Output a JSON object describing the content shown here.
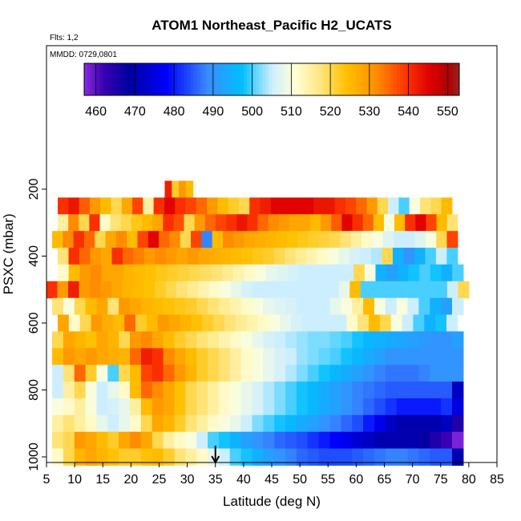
{
  "chart_data": {
    "type": "heatmap",
    "title": "ATOM1 Northeast_Pacific H2_UCATS",
    "subtitle_flights": "Flts: 1,2",
    "subtitle_dates": "MMDD: 0729,0801",
    "xlabel": "Latitude (deg N)",
    "ylabel": "PSXC (mbar)",
    "xlim": [
      5,
      85
    ],
    "ylim": [
      1000,
      0
    ],
    "x_ticks": [
      "5",
      "10",
      "15",
      "20",
      "25",
      "30",
      "35",
      "40",
      "45",
      "50",
      "55",
      "60",
      "65",
      "70",
      "75",
      "80",
      "85"
    ],
    "y_ticks": [
      "200",
      "400",
      "600",
      "800",
      "1000"
    ],
    "colorbar": {
      "min": 457,
      "max": 553,
      "ticks": [
        "460",
        "470",
        "480",
        "490",
        "500",
        "510",
        "520",
        "530",
        "540",
        "550"
      ]
    },
    "marker": {
      "x": 35,
      "y": 1000
    },
    "rows": [
      {
        "p": 200,
        "lat_start": 26,
        "lat_end": 31,
        "values": [
          542,
          522,
          530,
          525
        ]
      },
      {
        "p": 250,
        "lat_start": 7,
        "lat_end": 77,
        "values": [
          540,
          543,
          536,
          530,
          525,
          520,
          528,
          538,
          515,
          540,
          545,
          540,
          538,
          535,
          530,
          525,
          522,
          520,
          540,
          542,
          545,
          545,
          545,
          545,
          543,
          543,
          540,
          538,
          535,
          530,
          520,
          505,
          500,
          510,
          518,
          520,
          525
        ]
      },
      {
        "p": 300,
        "lat_start": 7,
        "lat_end": 78,
        "values": [
          515,
          532,
          520,
          540,
          512,
          518,
          520,
          523,
          525,
          528,
          540,
          537,
          520,
          530,
          535,
          538,
          540,
          543,
          540,
          535,
          532,
          530,
          528,
          528,
          525,
          530,
          536,
          545,
          540,
          535,
          525,
          510,
          525,
          540,
          545,
          538,
          525,
          518
        ]
      },
      {
        "p": 350,
        "lat_start": 6,
        "lat_end": 78,
        "values": [
          525,
          532,
          540,
          535,
          520,
          528,
          532,
          525,
          538,
          545,
          535,
          532,
          520,
          538,
          488,
          525,
          532,
          530,
          528,
          527,
          526,
          525,
          524,
          523,
          522,
          521,
          520,
          518,
          515,
          512,
          510,
          507,
          505,
          505,
          507,
          510,
          520,
          538
        ]
      },
      {
        "p": 400,
        "lat_start": 7,
        "lat_end": 78,
        "values": [
          518,
          540,
          535,
          530,
          528,
          540,
          535,
          533,
          530,
          532,
          530,
          528,
          530,
          528,
          527,
          526,
          525,
          524,
          523,
          522,
          520,
          518,
          516,
          514,
          512,
          510,
          508,
          506,
          505,
          504,
          520,
          495,
          490,
          495,
          500,
          505,
          500
        ]
      },
      {
        "p": 450,
        "lat_start": 7,
        "lat_end": 79,
        "values": [
          512,
          525,
          530,
          532,
          528,
          528,
          526,
          525,
          524,
          523,
          522,
          521,
          520,
          519,
          518,
          516,
          514,
          512,
          510,
          508,
          507,
          506,
          505,
          505,
          505,
          505,
          505,
          520,
          510,
          495,
          492,
          495,
          498,
          500,
          498,
          495,
          500
        ]
      },
      {
        "p": 500,
        "lat_start": 5,
        "lat_end": 80,
        "values": [
          540,
          530,
          542,
          530,
          532,
          530,
          528,
          526,
          525,
          524,
          522,
          520,
          518,
          516,
          514,
          512,
          510,
          508,
          506,
          505,
          505,
          505,
          505,
          505,
          505,
          505,
          505,
          508,
          525,
          500,
          500,
          500,
          500,
          500,
          500,
          500,
          500,
          505,
          520
        ]
      },
      {
        "p": 550,
        "lat_start": 6,
        "lat_end": 79,
        "values": [
          518,
          510,
          520,
          525,
          528,
          518,
          530,
          528,
          526,
          525,
          524,
          523,
          522,
          520,
          518,
          516,
          514,
          512,
          510,
          508,
          507,
          506,
          505,
          505,
          505,
          508,
          510,
          515,
          525,
          510,
          505,
          510,
          505,
          500,
          495,
          492,
          505
        ]
      },
      {
        "p": 600,
        "lat_start": 7,
        "lat_end": 78,
        "values": [
          528,
          512,
          520,
          530,
          527,
          525,
          535,
          522,
          525,
          530,
          528,
          526,
          524,
          522,
          520,
          518,
          516,
          514,
          512,
          510,
          508,
          506,
          505,
          505,
          505,
          505,
          512,
          518,
          525,
          520,
          510,
          505,
          500,
          495,
          498,
          505
        ]
      },
      {
        "p": 650,
        "lat_start": 6,
        "lat_end": 79,
        "values": [
          520,
          528,
          526,
          524,
          528,
          526,
          520,
          530,
          532,
          528,
          525,
          522,
          520,
          518,
          516,
          514,
          512,
          510,
          508,
          506,
          505,
          504,
          503,
          502,
          502,
          501,
          500,
          498,
          496,
          495,
          494,
          493,
          492,
          491,
          490,
          490,
          492
        ]
      },
      {
        "p": 700,
        "lat_start": 6,
        "lat_end": 79,
        "values": [
          525,
          530,
          528,
          530,
          528,
          527,
          526,
          535,
          542,
          540,
          532,
          528,
          525,
          522,
          520,
          518,
          515,
          512,
          510,
          508,
          506,
          505,
          503,
          502,
          501,
          500,
          498,
          496,
          494,
          492,
          490,
          490,
          490,
          490,
          490,
          490,
          490
        ]
      },
      {
        "p": 750,
        "lat_start": 6,
        "lat_end": 79,
        "values": [
          505,
          518,
          535,
          522,
          510,
          500,
          520,
          525,
          538,
          540,
          535,
          530,
          526,
          522,
          520,
          518,
          515,
          512,
          510,
          508,
          506,
          504,
          502,
          500,
          498,
          496,
          494,
          492,
          490,
          488,
          487,
          487,
          487,
          488,
          490,
          490,
          490
        ]
      },
      {
        "p": 800,
        "lat_start": 6,
        "lat_end": 79,
        "values": [
          505,
          515,
          520,
          510,
          505,
          508,
          512,
          525,
          535,
          532,
          528,
          524,
          520,
          518,
          515,
          512,
          510,
          508,
          506,
          504,
          502,
          500,
          498,
          496,
          494,
          492,
          490,
          488,
          487,
          486,
          485,
          485,
          485,
          485,
          485,
          485,
          472
        ]
      },
      {
        "p": 850,
        "lat_start": 6,
        "lat_end": 79,
        "values": [
          510,
          512,
          515,
          510,
          505,
          506,
          508,
          515,
          525,
          530,
          528,
          524,
          520,
          518,
          515,
          512,
          510,
          508,
          506,
          504,
          502,
          500,
          498,
          496,
          494,
          492,
          490,
          488,
          486,
          484,
          482,
          480,
          480,
          480,
          480,
          482,
          475
        ]
      },
      {
        "p": 900,
        "lat_start": 6,
        "lat_end": 79,
        "values": [
          515,
          518,
          515,
          512,
          508,
          505,
          508,
          512,
          520,
          528,
          526,
          522,
          518,
          515,
          512,
          510,
          508,
          505,
          502,
          500,
          498,
          496,
          494,
          492,
          490,
          488,
          486,
          484,
          480,
          476,
          472,
          470,
          470,
          470,
          470,
          472,
          465
        ]
      },
      {
        "p": 950,
        "lat_start": 6,
        "lat_end": 79,
        "values": [
          518,
          520,
          530,
          528,
          525,
          522,
          528,
          532,
          528,
          520,
          515,
          512,
          510,
          505,
          500,
          498,
          495,
          492,
          490,
          488,
          486,
          485,
          484,
          482,
          480,
          478,
          476,
          474,
          472,
          470,
          470,
          470,
          470,
          468,
          465,
          462,
          458
        ]
      },
      {
        "p": 1000,
        "lat_start": 6,
        "lat_end": 79,
        "values": [
          512,
          520,
          526,
          528,
          526,
          524,
          522,
          522,
          524,
          525,
          522,
          518,
          515,
          512,
          508,
          505,
          500,
          498,
          495,
          492,
          490,
          488,
          486,
          485,
          484,
          484,
          484,
          485,
          486,
          487,
          488,
          488,
          487,
          486,
          485,
          485,
          470
        ]
      }
    ]
  }
}
